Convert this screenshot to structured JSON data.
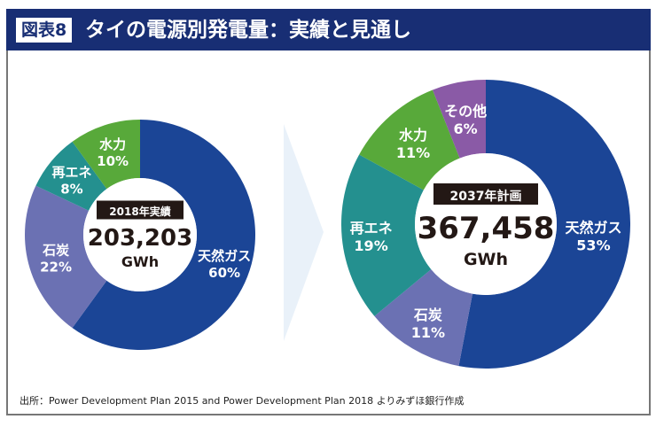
{
  "header": {
    "badge": "図表8",
    "title": "タイの電源別発電量：実績と見通し"
  },
  "source": "出所：Power Development Plan 2015 and Power Development Plan 2018 よりみずほ銀行作成",
  "colors": {
    "gas": "#1b4596",
    "coal": "#6b71b3",
    "renewable": "#24908f",
    "hydro": "#58a93a",
    "other": "#8a5aa6",
    "arrow": "#e9f1f9",
    "header": "#182e74"
  },
  "chart_data": [
    {
      "type": "pie",
      "donut": true,
      "center_tag": "2018年実績",
      "total": "203,203",
      "unit": "GWh",
      "categories": [
        "天然ガス",
        "石炭",
        "再エネ",
        "水力"
      ],
      "values": [
        60,
        22,
        8,
        10
      ],
      "labels": [
        "60%",
        "22%",
        "8%",
        "10%"
      ],
      "keys": [
        "gas",
        "coal",
        "renewable",
        "hydro"
      ]
    },
    {
      "type": "pie",
      "donut": true,
      "center_tag": "2037年計画",
      "total": "367,458",
      "unit": "GWh",
      "categories": [
        "天然ガス",
        "石炭",
        "再エネ",
        "水力",
        "その他"
      ],
      "values": [
        53,
        11,
        19,
        11,
        6
      ],
      "labels": [
        "53%",
        "11%",
        "19%",
        "11%",
        "6%"
      ],
      "keys": [
        "gas",
        "coal",
        "renewable",
        "hydro",
        "other"
      ]
    }
  ]
}
